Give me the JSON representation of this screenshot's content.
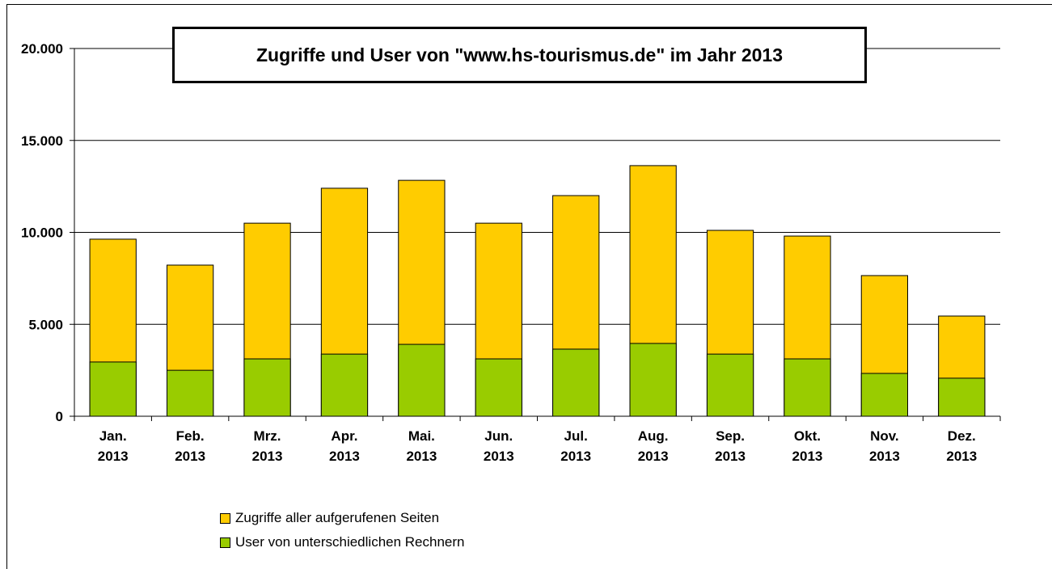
{
  "chart_data": {
    "type": "bar",
    "overlap": true,
    "title": "Zugriffe und User von \"www.hs-tourismus.de\" im Jahr 2013",
    "categories": [
      "Jan. 2013",
      "Feb. 2013",
      "Mrz. 2013",
      "Apr. 2013",
      "Mai. 2013",
      "Jun. 2013",
      "Jul. 2013",
      "Aug. 2013",
      "Sep. 2013",
      "Okt. 2013",
      "Nov. 2013",
      "Dez. 2013"
    ],
    "series": [
      {
        "name": "Zugriffe aller aufgerufenen Seiten",
        "color": "#ffcc00",
        "values": [
          9630,
          8220,
          10500,
          12400,
          12830,
          10500,
          12000,
          13630,
          10110,
          9800,
          7650,
          5450
        ]
      },
      {
        "name": "User von unterschiedlichen Rechnern",
        "color": "#99cc00",
        "values": [
          2950,
          2500,
          3120,
          3380,
          3910,
          3120,
          3650,
          3960,
          3380,
          3120,
          2330,
          2070
        ]
      }
    ],
    "ylim": [
      0,
      20000
    ],
    "yticks": [
      0,
      {
        "value": 5000,
        "label": "5.000"
      },
      {
        "value": 10000,
        "label": "10.000"
      },
      {
        "value": 15000,
        "label": "15.000"
      },
      {
        "value": 20000,
        "label": "20.000"
      }
    ],
    "grid": true
  }
}
